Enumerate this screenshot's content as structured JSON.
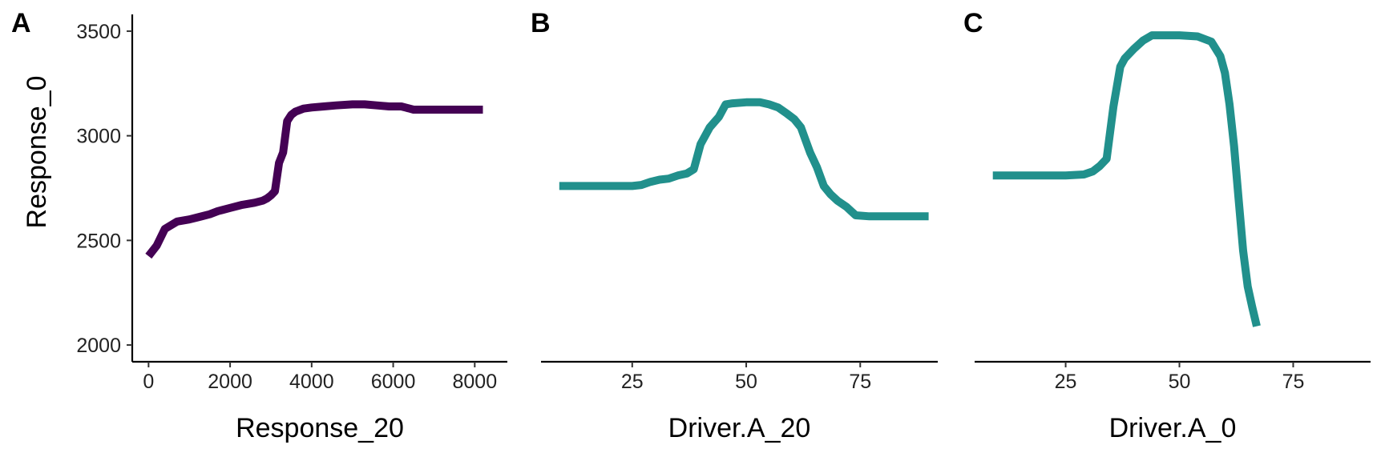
{
  "figure": {
    "ylabel": "Response_0"
  },
  "chart_data": [
    {
      "type": "line",
      "panel_label": "A",
      "xlabel": "Response_20",
      "ylabel": "Response_0",
      "xlim": [
        -400,
        8800
      ],
      "ylim": [
        1920,
        3580
      ],
      "xticks": [
        0,
        2000,
        4000,
        6000,
        8000
      ],
      "xtick_labels": [
        "0",
        "2000",
        "4000",
        "6000",
        "8000"
      ],
      "yticks": [
        2000,
        2500,
        3000,
        3500
      ],
      "ytick_labels": [
        "2000",
        "2500",
        "3000",
        "3500"
      ],
      "show_y_axis": true,
      "grid": false,
      "line_color": "#440154",
      "series": [
        {
          "x": [
            0,
            200,
            400,
            700,
            1000,
            1200,
            1500,
            1700,
            1800,
            2000,
            2300,
            2600,
            2800,
            2900,
            3000,
            3100,
            3200,
            3300,
            3400,
            3500,
            3600,
            3800,
            4000,
            4300,
            4600,
            5000,
            5300,
            5600,
            5900,
            6200,
            6300,
            6500,
            6700,
            7000,
            7500,
            8000,
            8200
          ],
          "y": [
            2425,
            2475,
            2555,
            2590,
            2600,
            2610,
            2625,
            2640,
            2645,
            2655,
            2670,
            2680,
            2690,
            2700,
            2715,
            2735,
            2870,
            2920,
            3070,
            3100,
            3115,
            3130,
            3135,
            3140,
            3145,
            3150,
            3150,
            3145,
            3140,
            3140,
            3135,
            3125,
            3125,
            3125,
            3125,
            3125,
            3125
          ]
        }
      ]
    },
    {
      "type": "line",
      "panel_label": "B",
      "xlabel": "Driver.A_20",
      "xlim": [
        5,
        92
      ],
      "ylim": [
        1920,
        3580
      ],
      "xticks": [
        25,
        50,
        75
      ],
      "xtick_labels": [
        "25",
        "50",
        "75"
      ],
      "show_y_axis": false,
      "grid": false,
      "line_color": "#21908C",
      "series": [
        {
          "x": [
            9,
            15,
            20,
            25,
            27,
            29,
            31,
            33,
            35,
            37,
            38.5,
            40,
            42,
            44,
            45.5,
            47,
            50,
            53,
            55,
            57,
            59,
            60.5,
            62,
            63,
            64,
            65.5,
            67,
            68.5,
            70,
            72,
            73,
            74,
            77,
            80,
            85,
            90
          ],
          "y": [
            2760,
            2760,
            2760,
            2760,
            2765,
            2780,
            2790,
            2795,
            2810,
            2820,
            2840,
            2960,
            3040,
            3090,
            3150,
            3155,
            3160,
            3160,
            3150,
            3135,
            3105,
            3080,
            3040,
            2980,
            2920,
            2850,
            2760,
            2720,
            2690,
            2660,
            2640,
            2620,
            2615,
            2615,
            2615,
            2615
          ]
        }
      ]
    },
    {
      "type": "line",
      "panel_label": "C",
      "xlabel": "Driver.A_0",
      "xlim": [
        5,
        92
      ],
      "ylim": [
        1920,
        3580
      ],
      "xticks": [
        25,
        50,
        75
      ],
      "xtick_labels": [
        "25",
        "50",
        "75"
      ],
      "show_y_axis": false,
      "grid": false,
      "line_color": "#21908C",
      "series": [
        {
          "x": [
            9,
            15,
            20,
            25,
            29,
            31,
            32.5,
            34,
            35.5,
            37,
            38,
            40,
            42,
            44,
            46,
            50,
            54,
            57,
            59,
            60,
            61,
            62,
            63,
            64,
            65,
            66,
            67
          ],
          "y": [
            2810,
            2810,
            2810,
            2810,
            2815,
            2830,
            2855,
            2890,
            3140,
            3330,
            3370,
            3415,
            3455,
            3480,
            3480,
            3480,
            3475,
            3450,
            3380,
            3300,
            3150,
            2950,
            2700,
            2450,
            2280,
            2180,
            2090
          ]
        }
      ]
    }
  ]
}
